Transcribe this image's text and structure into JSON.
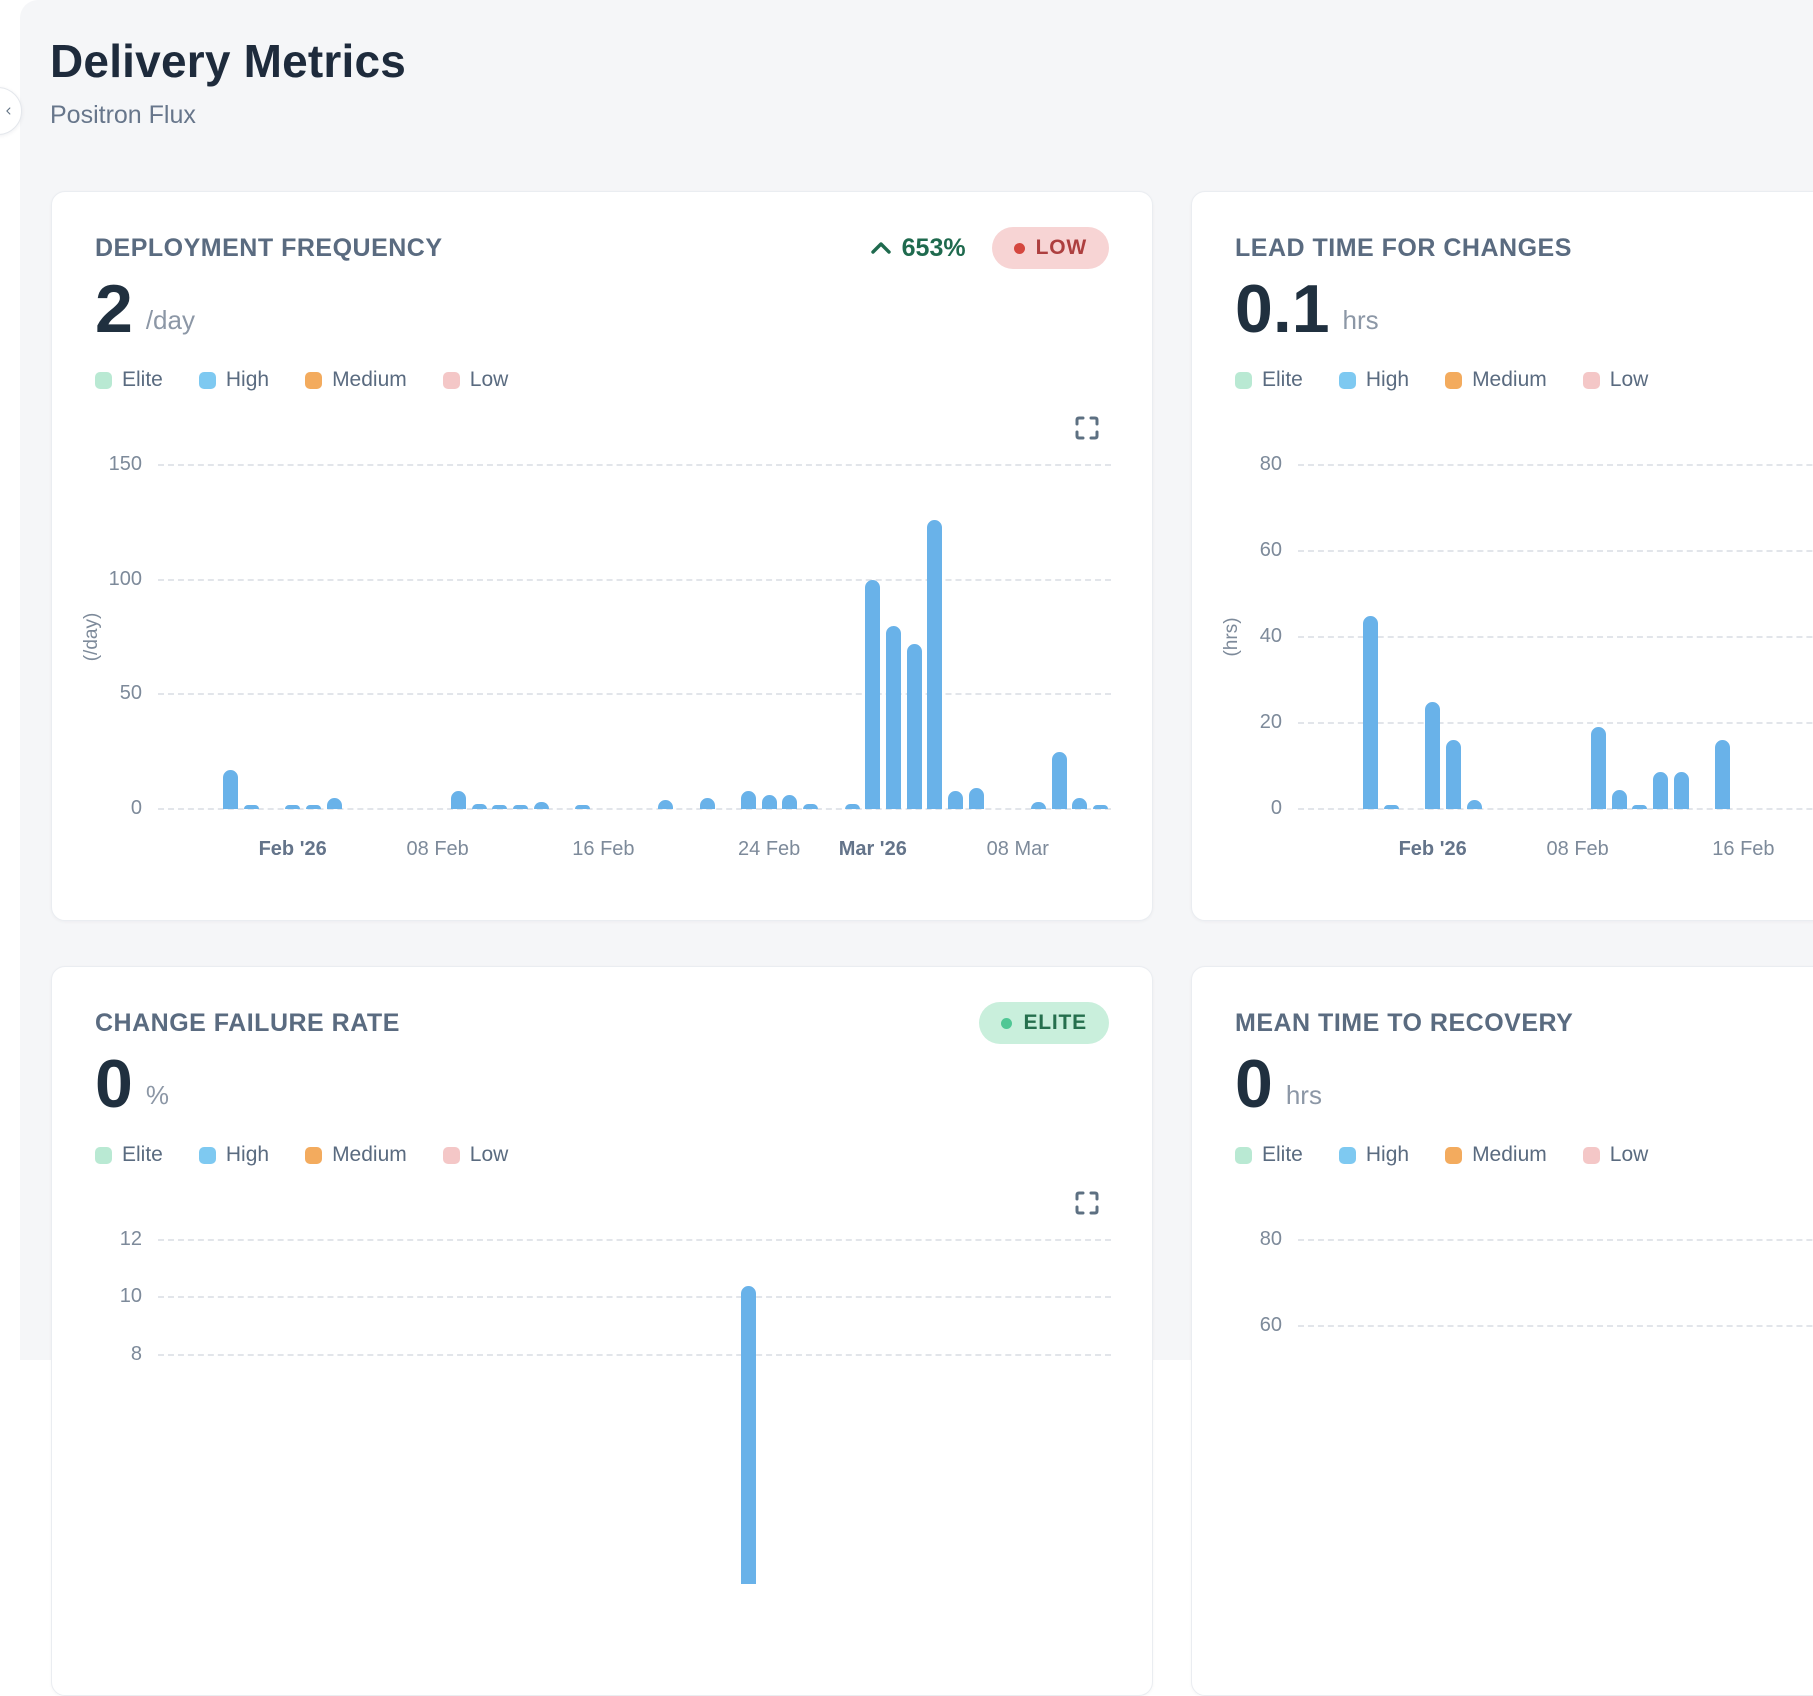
{
  "page": {
    "title": "Delivery Metrics",
    "subtitle": "Positron Flux"
  },
  "colors": {
    "panel_bg": "#f5f6f8",
    "bar": "#69b2e9",
    "grid": "#e2e5ea",
    "trend_up": "#1f6a4e"
  },
  "legend": {
    "items": [
      {
        "label": "Elite",
        "color": "#b9e9d3"
      },
      {
        "label": "High",
        "color": "#7ec9f1"
      },
      {
        "label": "Medium",
        "color": "#f3ab5e"
      },
      {
        "label": "Low",
        "color": "#f4c7c7"
      }
    ]
  },
  "cards": [
    {
      "title": "DEPLOYMENT FREQUENCY",
      "value": "2",
      "unit": "/day",
      "trend": {
        "direction": "up",
        "value": "653%"
      },
      "badge": {
        "label": "LOW",
        "bg": "#f7d4d4",
        "fg": "#ad3f3f",
        "dot": "#d5473f"
      },
      "chart_data": {
        "type": "bar",
        "ylabel": "(/day)",
        "ymax": 150,
        "ymin": 0,
        "yticks": [
          150,
          100,
          50,
          0
        ],
        "grid": "dashed",
        "x_unit": "day",
        "slots": 46,
        "xticks": [
          {
            "index": 6,
            "label": "Feb '26",
            "bold": true
          },
          {
            "index": 13,
            "label": "08 Feb"
          },
          {
            "index": 21,
            "label": "16 Feb"
          },
          {
            "index": 29,
            "label": "24 Feb"
          },
          {
            "index": 34,
            "label": "Mar '26",
            "bold": true
          },
          {
            "index": 41,
            "label": "08 Mar"
          }
        ],
        "bars": [
          [
            3,
            17
          ],
          [
            4,
            1
          ],
          [
            6,
            1
          ],
          [
            7,
            1
          ],
          [
            8,
            5
          ],
          [
            14,
            8
          ],
          [
            15,
            2
          ],
          [
            16,
            1
          ],
          [
            17,
            1
          ],
          [
            18,
            3
          ],
          [
            20,
            1
          ],
          [
            24,
            4
          ],
          [
            26,
            5
          ],
          [
            28,
            8
          ],
          [
            29,
            6
          ],
          [
            30,
            6
          ],
          [
            31,
            2
          ],
          [
            33,
            2
          ],
          [
            34,
            100
          ],
          [
            35,
            80
          ],
          [
            36,
            72
          ],
          [
            37,
            126
          ],
          [
            38,
            8
          ],
          [
            39,
            9
          ],
          [
            42,
            3
          ],
          [
            43,
            25
          ],
          [
            44,
            5
          ],
          [
            45,
            1.5
          ]
        ]
      }
    },
    {
      "title": "LEAD TIME FOR CHANGES",
      "value": "0.1",
      "unit": "hrs",
      "chart_data": {
        "type": "bar",
        "ylabel": "(hrs)",
        "ymax": 80,
        "ymin": 0,
        "yticks": [
          80,
          60,
          40,
          20,
          0
        ],
        "grid": "dashed",
        "x_unit": "day",
        "slots": 46,
        "xticks": [
          {
            "index": 6,
            "label": "Feb '26",
            "bold": true
          },
          {
            "index": 13,
            "label": "08 Feb"
          },
          {
            "index": 21,
            "label": "16 Feb"
          }
        ],
        "bars": [
          [
            3,
            45
          ],
          [
            4,
            0.4
          ],
          [
            6,
            25
          ],
          [
            7,
            16
          ],
          [
            8,
            2
          ],
          [
            14,
            19
          ],
          [
            15,
            4.5
          ],
          [
            16,
            0.4
          ],
          [
            17,
            8.5
          ],
          [
            18,
            8.5
          ],
          [
            20,
            16
          ]
        ]
      }
    },
    {
      "title": "CHANGE FAILURE RATE",
      "value": "0",
      "unit": "%",
      "badge": {
        "label": "ELITE",
        "bg": "#c9efdc",
        "fg": "#256f4d",
        "dot": "#50c795"
      },
      "chart_data": {
        "type": "bar",
        "ylabel": "",
        "ymax": 12,
        "ymin": 0,
        "yticks": [
          12,
          10,
          8
        ],
        "grid": "dashed",
        "x_unit": "day",
        "slots": 46,
        "xticks": [],
        "bars": [
          [
            28,
            10.4
          ]
        ]
      }
    },
    {
      "title": "MEAN TIME TO RECOVERY",
      "value": "0",
      "unit": "hrs",
      "chart_data": {
        "type": "bar",
        "ylabel": "",
        "ymax": 80,
        "ymin": 0,
        "yticks": [
          80,
          60
        ],
        "grid": "dashed",
        "x_unit": "day",
        "slots": 46,
        "xticks": [],
        "bars": []
      }
    }
  ]
}
